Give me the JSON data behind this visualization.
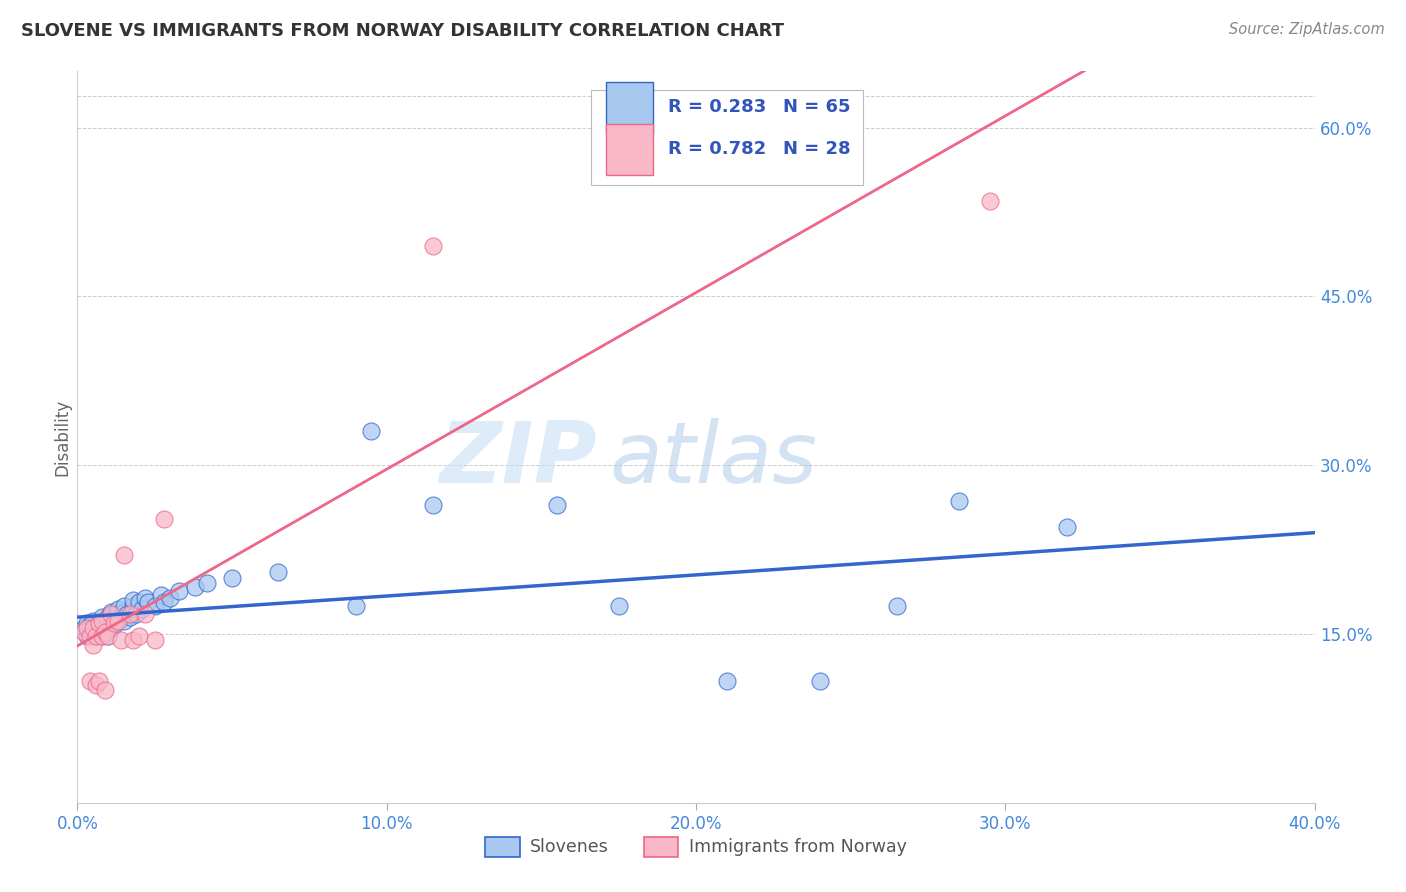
{
  "title": "SLOVENE VS IMMIGRANTS FROM NORWAY DISABILITY CORRELATION CHART",
  "source": "Source: ZipAtlas.com",
  "ylabel": "Disability",
  "xlim": [
    0.0,
    0.4
  ],
  "ylim": [
    0.0,
    0.65
  ],
  "x_ticks": [
    0.0,
    0.1,
    0.2,
    0.3,
    0.4
  ],
  "x_tick_labels": [
    "0.0%",
    "10.0%",
    "20.0%",
    "30.0%",
    "40.0%"
  ],
  "y_ticks": [
    0.15,
    0.3,
    0.45,
    0.6
  ],
  "y_tick_labels": [
    "15.0%",
    "30.0%",
    "45.0%",
    "60.0%"
  ],
  "slovenes_color": "#A8C8F0",
  "norway_color": "#F8B8C8",
  "line_blue": "#3366CC",
  "line_pink": "#EE6688",
  "legend_color": "#3355BB",
  "legend_blue_r": "R = 0.283",
  "legend_blue_n": "N = 65",
  "legend_pink_r": "R = 0.782",
  "legend_pink_n": "N = 28",
  "legend_label_blue": "Slovenes",
  "legend_label_pink": "Immigrants from Norway",
  "watermark_zip": "ZIP",
  "watermark_atlas": "atlas",
  "slovenes_x": [
    0.002,
    0.003,
    0.003,
    0.004,
    0.004,
    0.005,
    0.005,
    0.005,
    0.006,
    0.006,
    0.006,
    0.007,
    0.007,
    0.007,
    0.007,
    0.008,
    0.008,
    0.008,
    0.008,
    0.009,
    0.009,
    0.009,
    0.01,
    0.01,
    0.01,
    0.01,
    0.011,
    0.011,
    0.011,
    0.012,
    0.012,
    0.013,
    0.013,
    0.014,
    0.015,
    0.015,
    0.015,
    0.016,
    0.017,
    0.018,
    0.018,
    0.019,
    0.02,
    0.021,
    0.022,
    0.023,
    0.025,
    0.027,
    0.028,
    0.03,
    0.033,
    0.038,
    0.042,
    0.05,
    0.065,
    0.09,
    0.095,
    0.115,
    0.155,
    0.175,
    0.21,
    0.24,
    0.265,
    0.285,
    0.32
  ],
  "slovenes_y": [
    0.155,
    0.148,
    0.16,
    0.152,
    0.158,
    0.155,
    0.15,
    0.162,
    0.155,
    0.15,
    0.148,
    0.16,
    0.155,
    0.152,
    0.158,
    0.162,
    0.155,
    0.148,
    0.165,
    0.158,
    0.155,
    0.152,
    0.162,
    0.158,
    0.148,
    0.165,
    0.16,
    0.155,
    0.17,
    0.165,
    0.158,
    0.168,
    0.172,
    0.165,
    0.17,
    0.175,
    0.162,
    0.168,
    0.165,
    0.175,
    0.18,
    0.168,
    0.178,
    0.172,
    0.182,
    0.178,
    0.175,
    0.185,
    0.178,
    0.182,
    0.188,
    0.192,
    0.195,
    0.2,
    0.205,
    0.175,
    0.33,
    0.265,
    0.265,
    0.175,
    0.108,
    0.108,
    0.175,
    0.268,
    0.245
  ],
  "norway_x": [
    0.002,
    0.003,
    0.004,
    0.004,
    0.005,
    0.005,
    0.006,
    0.006,
    0.007,
    0.007,
    0.008,
    0.008,
    0.009,
    0.009,
    0.01,
    0.011,
    0.012,
    0.013,
    0.014,
    0.015,
    0.017,
    0.018,
    0.02,
    0.022,
    0.025,
    0.028,
    0.115,
    0.295
  ],
  "norway_y": [
    0.152,
    0.155,
    0.148,
    0.108,
    0.155,
    0.14,
    0.105,
    0.148,
    0.16,
    0.108,
    0.162,
    0.148,
    0.152,
    0.1,
    0.148,
    0.168,
    0.16,
    0.162,
    0.145,
    0.22,
    0.168,
    0.145,
    0.148,
    0.168,
    0.145,
    0.252,
    0.495,
    0.535
  ]
}
